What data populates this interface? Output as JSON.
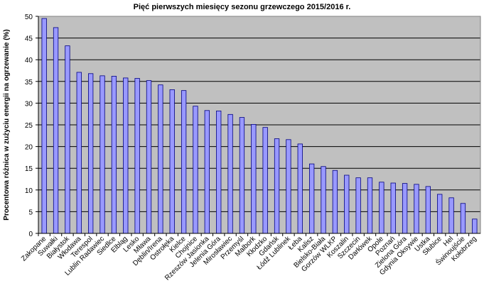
{
  "chart_data": {
    "type": "bar",
    "title": "Pięć pierwszych miesięcy sezonu grzewczego 2015/2016 r.",
    "xlabel": "",
    "ylabel": "Procentowa różnica w zużyciu energii na ogrzewanie (%)",
    "ylim": [
      0,
      50
    ],
    "yticks": [
      0,
      5,
      10,
      15,
      20,
      25,
      30,
      35,
      40,
      45,
      50
    ],
    "grid": true,
    "legend": "none",
    "colors": {
      "plot_bg": "#c0c0c0",
      "bar": "#9999ff",
      "bar_edge": "#000080",
      "grid": "#000000"
    },
    "categories": [
      "Zakopane",
      "Suwałki",
      "Białystok",
      "Włodawa",
      "Terespol",
      "Lublin Radawiec",
      "Siedlce",
      "Elbląg",
      "Lesko",
      "Mława",
      "Dęblin/Irena",
      "Ostrołęka",
      "Kielce",
      "Chojnice",
      "Rzeszów Jasionka",
      "Jelenia Góra",
      "Mirosławiec",
      "Przemyśl",
      "Malbork",
      "Kłodzko",
      "Gdańsk",
      "Łódź Lublinek",
      "Łeba",
      "Kalisz",
      "Bielsko-Biała",
      "Gorzów WLKP",
      "Koszalin",
      "Szczecin",
      "Darłówek",
      "Opole",
      "Poznań",
      "Zielona Góra",
      "Gdynia Oksywie",
      "Ustka",
      "Słubice",
      "Hel",
      "Świnoujście",
      "Kołobrzeg"
    ],
    "values": [
      49.5,
      47.4,
      43.2,
      37.1,
      36.8,
      36.3,
      36.2,
      35.8,
      35.7,
      35.2,
      34.2,
      33.1,
      32.9,
      29.3,
      28.3,
      28.2,
      27.4,
      26.7,
      25.1,
      24.4,
      21.8,
      21.6,
      20.6,
      16.0,
      15.4,
      14.5,
      13.4,
      12.8,
      12.8,
      11.8,
      11.6,
      11.5,
      11.3,
      10.8,
      9.0,
      8.2,
      6.9,
      3.3
    ]
  }
}
